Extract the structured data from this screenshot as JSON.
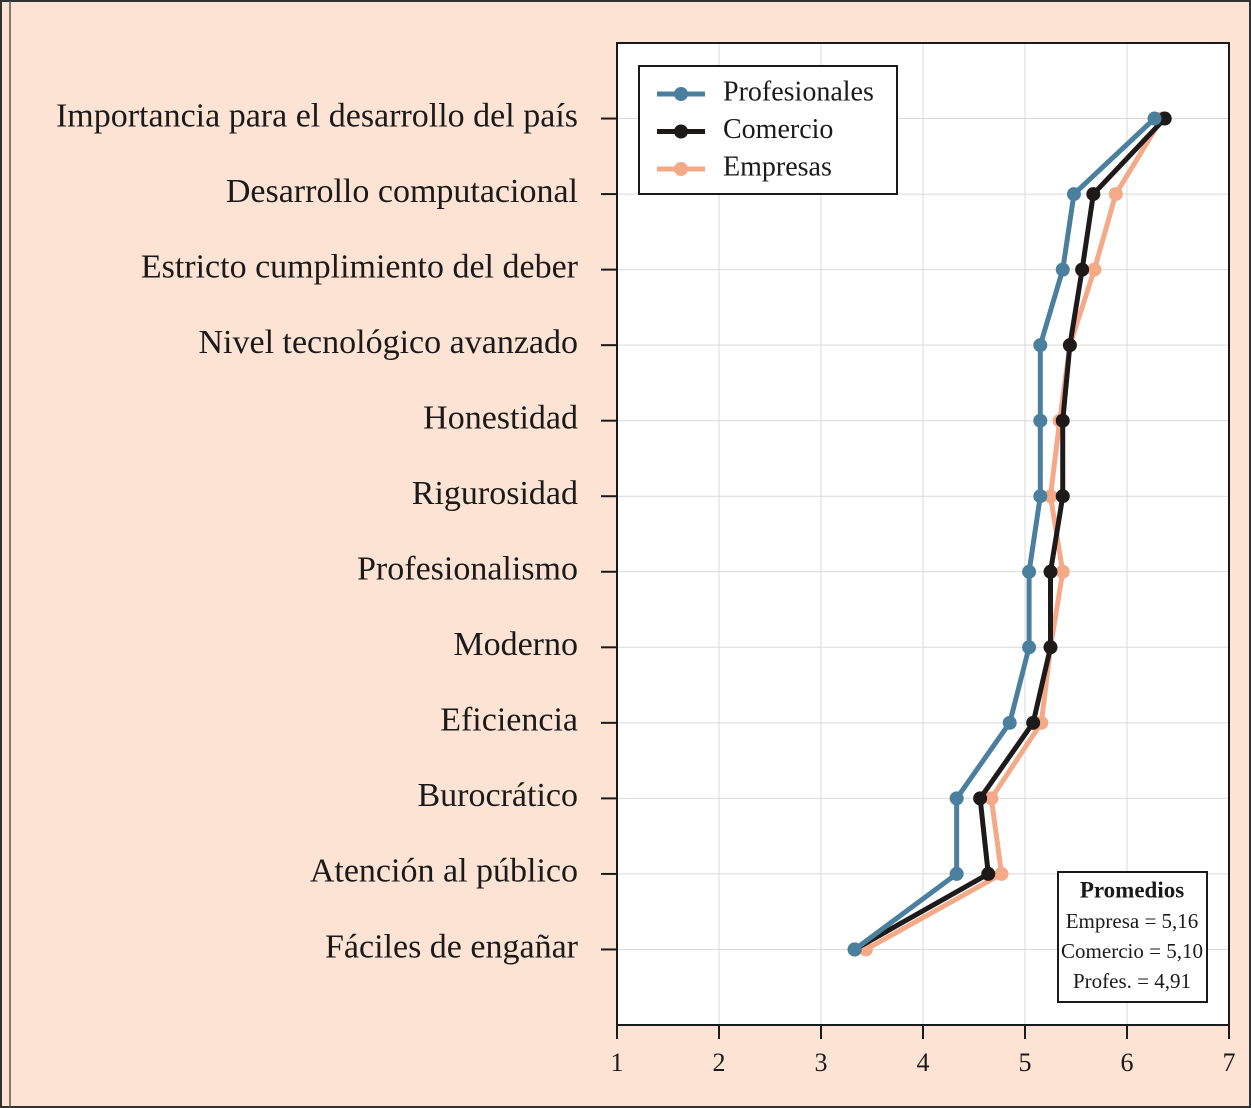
{
  "chart_data": {
    "type": "line",
    "categories": [
      "Importancia para el desarrollo del país",
      "Desarrollo computacional",
      "Estricto cumplimiento del deber",
      "Nivel tecnológico avanzado",
      "Honestidad",
      "Rigurosidad",
      "Profesionalismo",
      "Moderno",
      "Eficiencia",
      "Burocrático",
      "Atención al público",
      "Fáciles de engañar"
    ],
    "series": [
      {
        "name": "Profesionales",
        "color": "#4a7f9e",
        "values": [
          6.27,
          5.48,
          5.37,
          5.15,
          5.15,
          5.15,
          5.04,
          5.04,
          4.85,
          4.33,
          4.33,
          3.33
        ]
      },
      {
        "name": "Comercio",
        "color": "#1f1a1a",
        "values": [
          6.37,
          5.67,
          5.56,
          5.44,
          5.37,
          5.37,
          5.25,
          5.25,
          5.08,
          4.56,
          4.64,
          3.33
        ]
      },
      {
        "name": "Empresas",
        "color": "#f4a987",
        "values": [
          6.34,
          5.89,
          5.68,
          5.44,
          5.34,
          5.25,
          5.37,
          5.25,
          5.16,
          4.67,
          4.77,
          3.44
        ]
      }
    ],
    "xlim": [
      1,
      7
    ],
    "xticks": [
      1,
      2,
      3,
      4,
      5,
      6,
      7
    ],
    "grid": true,
    "legend": "upper left",
    "annotation": {
      "title": "Promedios",
      "lines": [
        "Empresa = 5,16",
        "Comercio = 5,10",
        "Profes. = 4,91"
      ]
    }
  }
}
